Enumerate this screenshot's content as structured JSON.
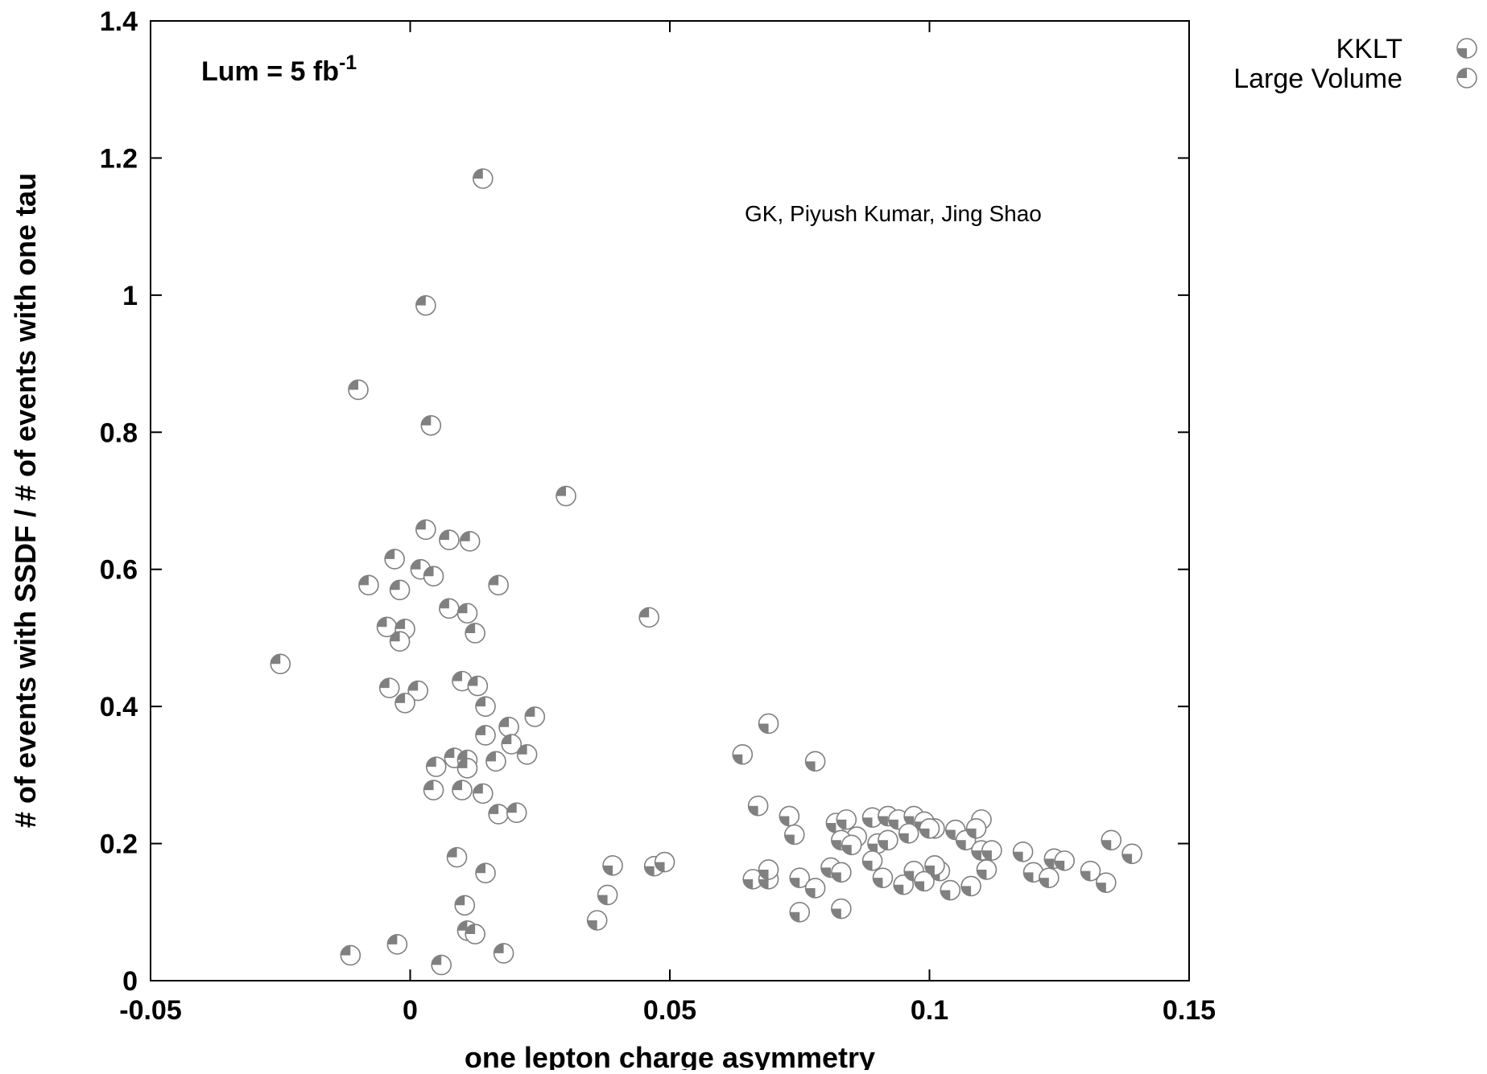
{
  "chart_data": {
    "type": "scatter",
    "title": "",
    "xlabel": "one lepton charge asymmetry",
    "ylabel": "# of events with SSDF / # of events with one tau",
    "xlim": [
      -0.05,
      0.15
    ],
    "ylim": [
      0,
      1.4
    ],
    "x_ticks": [
      -0.05,
      0,
      0.05,
      0.1,
      0.15
    ],
    "x_tick_labels": [
      "-0.05",
      "0",
      "0.05",
      "0.1",
      "0.15"
    ],
    "y_ticks": [
      0,
      0.2,
      0.4,
      0.6,
      0.8,
      1,
      1.2,
      1.4
    ],
    "y_tick_labels": [
      "0",
      "0.2",
      "0.4",
      "0.6",
      "0.8",
      "1",
      "1.2",
      "1.4"
    ],
    "grid": false,
    "legend_position": "outside-top-right",
    "annotations": {
      "luminosity_base": "Lum = 5 fb",
      "luminosity_exp": "-1",
      "credit": "GK, Piyush Kumar, Jing Shao"
    },
    "series": [
      {
        "name": "KKLT",
        "marker": "circle-lower-left-quadrant",
        "color": "#808080",
        "points": [
          [
            0.064,
            0.33
          ],
          [
            0.067,
            0.255
          ],
          [
            0.069,
            0.375
          ],
          [
            0.073,
            0.24
          ],
          [
            0.074,
            0.213
          ],
          [
            0.078,
            0.32
          ],
          [
            0.082,
            0.23
          ],
          [
            0.084,
            0.235
          ],
          [
            0.086,
            0.21
          ],
          [
            0.089,
            0.238
          ],
          [
            0.092,
            0.24
          ],
          [
            0.094,
            0.235
          ],
          [
            0.097,
            0.24
          ],
          [
            0.099,
            0.232
          ],
          [
            0.101,
            0.222
          ],
          [
            0.105,
            0.22
          ],
          [
            0.11,
            0.235
          ],
          [
            0.083,
            0.205
          ],
          [
            0.085,
            0.198
          ],
          [
            0.09,
            0.2
          ],
          [
            0.092,
            0.205
          ],
          [
            0.096,
            0.215
          ],
          [
            0.1,
            0.222
          ],
          [
            0.107,
            0.205
          ],
          [
            0.109,
            0.222
          ],
          [
            0.11,
            0.19
          ],
          [
            0.112,
            0.19
          ],
          [
            0.118,
            0.188
          ],
          [
            0.124,
            0.178
          ],
          [
            0.126,
            0.175
          ],
          [
            0.135,
            0.205
          ],
          [
            0.139,
            0.185
          ],
          [
            0.066,
            0.148
          ],
          [
            0.069,
            0.148
          ],
          [
            0.075,
            0.15
          ],
          [
            0.078,
            0.135
          ],
          [
            0.081,
            0.165
          ],
          [
            0.083,
            0.158
          ],
          [
            0.089,
            0.175
          ],
          [
            0.091,
            0.15
          ],
          [
            0.095,
            0.14
          ],
          [
            0.097,
            0.16
          ],
          [
            0.099,
            0.145
          ],
          [
            0.102,
            0.16
          ],
          [
            0.104,
            0.132
          ],
          [
            0.108,
            0.138
          ],
          [
            0.111,
            0.162
          ],
          [
            0.12,
            0.158
          ],
          [
            0.123,
            0.15
          ],
          [
            0.131,
            0.16
          ],
          [
            0.134,
            0.143
          ],
          [
            0.075,
            0.1
          ],
          [
            0.083,
            0.105
          ],
          [
            0.047,
            0.167
          ],
          [
            0.049,
            0.173
          ],
          [
            0.039,
            0.168
          ],
          [
            0.038,
            0.125
          ],
          [
            0.036,
            0.088
          ],
          [
            0.069,
            0.162
          ],
          [
            0.101,
            0.168
          ]
        ]
      },
      {
        "name": "Large Volume",
        "marker": "circle-upper-left-quadrant",
        "color": "#808080",
        "points": [
          [
            0.014,
            1.17
          ],
          [
            0.003,
            0.985
          ],
          [
            -0.01,
            0.862
          ],
          [
            0.004,
            0.81
          ],
          [
            0.03,
            0.707
          ],
          [
            0.003,
            0.658
          ],
          [
            0.0075,
            0.643
          ],
          [
            0.0115,
            0.641
          ],
          [
            -0.003,
            0.615
          ],
          [
            0.002,
            0.6
          ],
          [
            0.0045,
            0.59
          ],
          [
            -0.008,
            0.577
          ],
          [
            0.017,
            0.577
          ],
          [
            -0.002,
            0.57
          ],
          [
            0.046,
            0.53
          ],
          [
            0.0075,
            0.543
          ],
          [
            0.011,
            0.536
          ],
          [
            -0.0045,
            0.516
          ],
          [
            -0.001,
            0.513
          ],
          [
            0.0125,
            0.507
          ],
          [
            -0.002,
            0.495
          ],
          [
            -0.025,
            0.462
          ],
          [
            0.01,
            0.437
          ],
          [
            0.013,
            0.43
          ],
          [
            -0.004,
            0.427
          ],
          [
            0.0015,
            0.423
          ],
          [
            -0.001,
            0.405
          ],
          [
            0.0145,
            0.4
          ],
          [
            0.024,
            0.385
          ],
          [
            0.019,
            0.37
          ],
          [
            0.0145,
            0.358
          ],
          [
            0.0195,
            0.345
          ],
          [
            0.0225,
            0.33
          ],
          [
            0.0085,
            0.325
          ],
          [
            0.011,
            0.322
          ],
          [
            0.0165,
            0.32
          ],
          [
            0.005,
            0.312
          ],
          [
            0.011,
            0.31
          ],
          [
            0.0045,
            0.278
          ],
          [
            0.01,
            0.278
          ],
          [
            0.014,
            0.273
          ],
          [
            0.017,
            0.243
          ],
          [
            0.0205,
            0.245
          ],
          [
            0.009,
            0.18
          ],
          [
            0.0145,
            0.157
          ],
          [
            0.0105,
            0.11
          ],
          [
            0.011,
            0.073
          ],
          [
            0.0125,
            0.068
          ],
          [
            0.018,
            0.04
          ],
          [
            -0.0025,
            0.053
          ],
          [
            -0.0115,
            0.037
          ],
          [
            0.006,
            0.023
          ]
        ]
      }
    ]
  }
}
